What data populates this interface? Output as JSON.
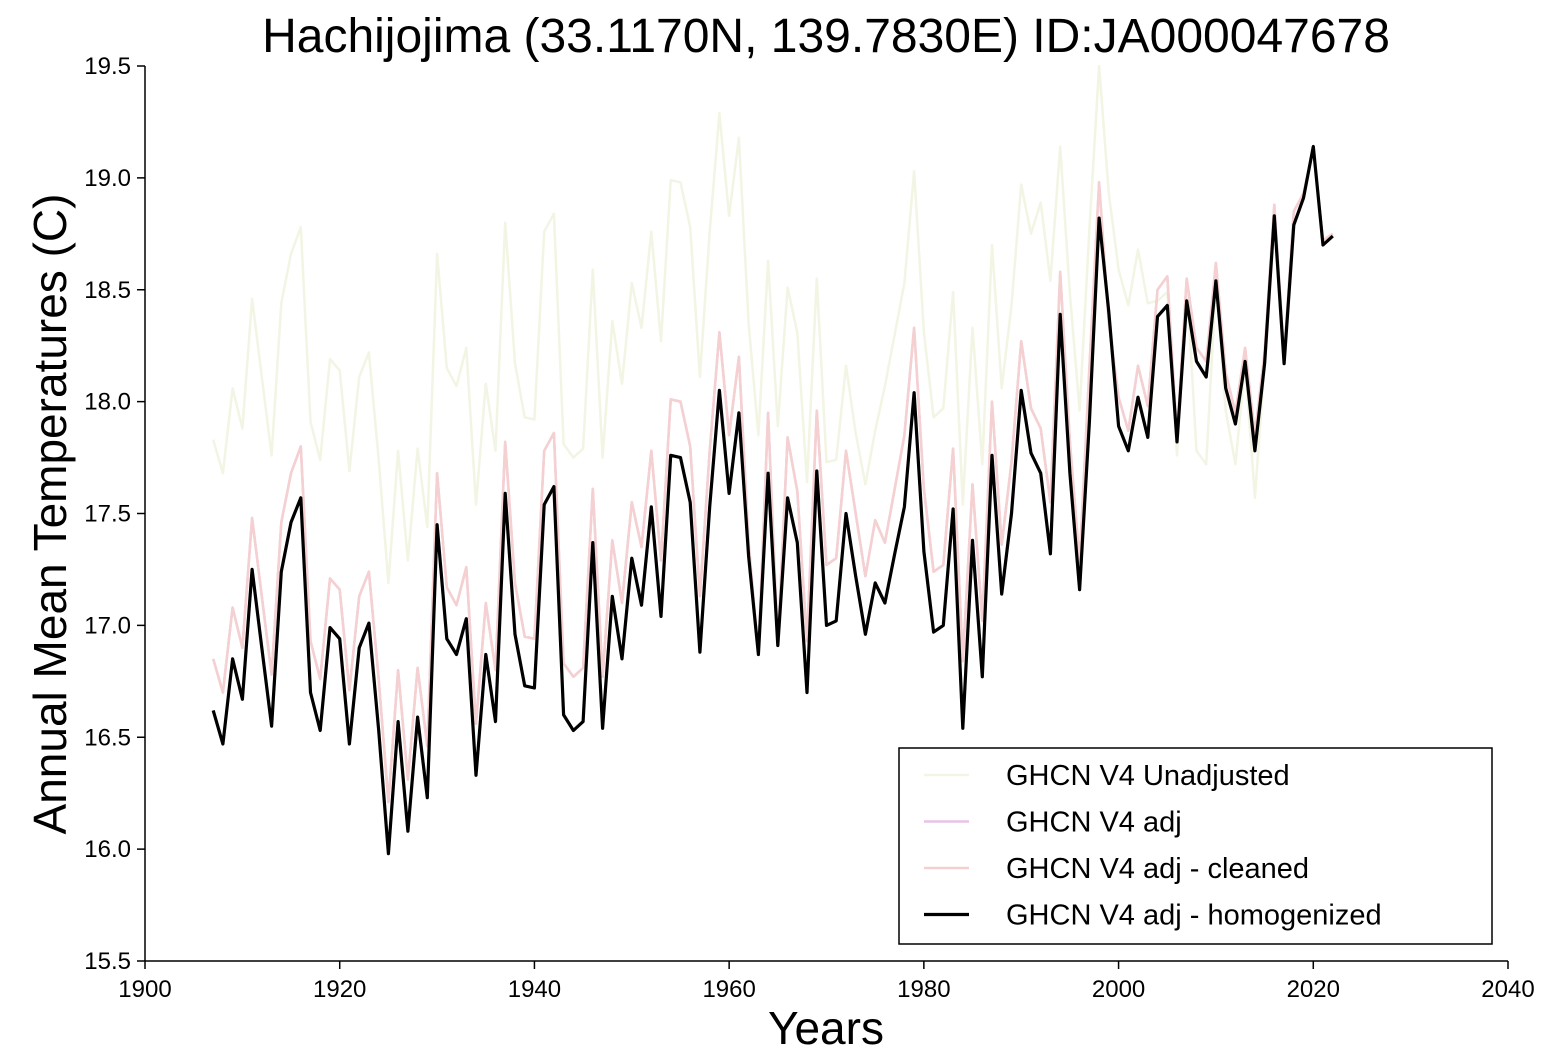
{
  "chart_data": {
    "type": "line",
    "title": "Hachijojima (33.1170N, 139.7830E) ID:JA000047678",
    "xlabel": "Years",
    "ylabel": "Annual Mean Temperatures (C)",
    "xlim": [
      1900,
      2040
    ],
    "ylim": [
      15.5,
      19.5
    ],
    "xticks": [
      "1900",
      "1920",
      "1940",
      "1960",
      "1980",
      "2000",
      "2020",
      "2040"
    ],
    "yticks": [
      "15.5",
      "16.0",
      "16.5",
      "17.0",
      "17.5",
      "18.0",
      "18.5",
      "19.0",
      "19.5"
    ],
    "grid": false,
    "legend_position": "lower-right",
    "x": [
      1907,
      1908,
      1909,
      1910,
      1911,
      1912,
      1913,
      1914,
      1915,
      1916,
      1917,
      1918,
      1919,
      1920,
      1921,
      1922,
      1923,
      1924,
      1925,
      1926,
      1927,
      1928,
      1929,
      1930,
      1931,
      1932,
      1933,
      1934,
      1935,
      1936,
      1937,
      1938,
      1939,
      1940,
      1941,
      1942,
      1943,
      1944,
      1945,
      1946,
      1947,
      1948,
      1949,
      1950,
      1951,
      1952,
      1953,
      1954,
      1955,
      1956,
      1957,
      1958,
      1959,
      1960,
      1961,
      1962,
      1963,
      1964,
      1965,
      1966,
      1967,
      1968,
      1969,
      1970,
      1971,
      1972,
      1973,
      1974,
      1975,
      1976,
      1977,
      1978,
      1979,
      1980,
      1981,
      1982,
      1983,
      1984,
      1985,
      1986,
      1987,
      1988,
      1989,
      1990,
      1991,
      1992,
      1993,
      1994,
      1995,
      1996,
      1997,
      1998,
      1999,
      2000,
      2001,
      2002,
      2003,
      2004,
      2005,
      2006,
      2007,
      2008,
      2009,
      2010,
      2011,
      2012,
      2013,
      2014,
      2015,
      2016,
      2017,
      2018,
      2019,
      2020,
      2021,
      2022
    ],
    "series": [
      {
        "name": "GHCN V4 Unadjusted",
        "color": "#f2f5e3",
        "width": 2.5,
        "values": [
          17.83,
          17.68,
          18.06,
          17.88,
          18.46,
          18.11,
          17.76,
          18.44,
          18.66,
          18.78,
          17.91,
          17.74,
          18.19,
          18.14,
          17.69,
          18.11,
          18.22,
          17.74,
          17.19,
          17.78,
          17.29,
          17.79,
          17.44,
          18.66,
          18.15,
          18.07,
          18.24,
          17.54,
          18.08,
          17.78,
          18.8,
          18.17,
          17.93,
          17.92,
          18.76,
          18.84,
          17.81,
          17.75,
          17.79,
          18.59,
          17.75,
          18.36,
          18.08,
          18.53,
          18.33,
          18.76,
          18.27,
          18.99,
          18.98,
          18.78,
          18.11,
          18.76,
          19.29,
          18.83,
          19.18,
          18.35,
          17.85,
          18.63,
          17.89,
          18.51,
          18.31,
          17.64,
          18.55,
          17.73,
          17.74,
          18.16,
          17.86,
          17.63,
          17.87,
          18.07,
          18.3,
          18.53,
          19.03,
          18.31,
          17.93,
          17.97,
          18.49,
          17.54,
          18.33,
          17.72,
          18.7,
          18.06,
          18.43,
          18.97,
          18.75,
          18.89,
          18.54,
          19.14,
          18.48,
          17.96,
          18.77,
          19.5,
          18.93,
          18.59,
          18.43,
          18.68,
          18.44,
          18.45,
          18.49,
          17.76,
          18.54,
          17.78,
          17.72,
          18.53,
          17.96,
          17.72,
          18.17,
          17.57,
          18.17,
          18.87,
          18.19,
          18.85,
          18.93,
          19.13,
          18.72,
          18.75
        ]
      },
      {
        "name": "GHCN V4 adj",
        "color": "#e6c4e6",
        "width": 2.5,
        "values": [
          16.85,
          16.7,
          17.08,
          16.9,
          17.48,
          17.13,
          16.78,
          17.46,
          17.68,
          17.8,
          16.93,
          16.76,
          17.21,
          17.16,
          16.71,
          17.13,
          17.24,
          16.76,
          16.21,
          16.8,
          16.31,
          16.81,
          16.46,
          17.68,
          17.17,
          17.09,
          17.26,
          16.56,
          17.1,
          16.8,
          17.82,
          17.19,
          16.95,
          16.94,
          17.78,
          17.86,
          16.83,
          16.77,
          16.81,
          17.61,
          16.77,
          17.38,
          17.1,
          17.55,
          17.35,
          17.78,
          17.29,
          18.01,
          18.0,
          17.8,
          17.13,
          17.78,
          18.31,
          17.85,
          18.2,
          17.37,
          16.87,
          17.95,
          16.91,
          17.84,
          17.6,
          16.93,
          17.96,
          17.27,
          17.3,
          17.78,
          17.5,
          17.22,
          17.47,
          17.37,
          17.61,
          17.85,
          18.33,
          17.61,
          17.24,
          17.27,
          17.79,
          16.84,
          17.63,
          17.02,
          18.0,
          17.36,
          17.73,
          18.27,
          17.97,
          17.88,
          17.55,
          18.58,
          17.82,
          17.28,
          18.15,
          18.98,
          18.35,
          18.02,
          17.87,
          18.16,
          17.98,
          18.5,
          18.56,
          17.84,
          18.55,
          18.24,
          18.18,
          18.62,
          18.13,
          17.95,
          18.24,
          17.85,
          18.22,
          18.88,
          18.2,
          18.85,
          18.93,
          19.13,
          18.72,
          18.75
        ]
      },
      {
        "name": "GHCN V4 adj - cleaned",
        "color": "#f5d0d0",
        "width": 2.5,
        "values": [
          16.85,
          16.7,
          17.08,
          16.9,
          17.48,
          17.13,
          16.78,
          17.46,
          17.68,
          17.8,
          16.93,
          16.76,
          17.21,
          17.16,
          16.71,
          17.13,
          17.24,
          16.76,
          16.21,
          16.8,
          16.31,
          16.81,
          16.46,
          17.68,
          17.17,
          17.09,
          17.26,
          16.56,
          17.1,
          16.8,
          17.82,
          17.19,
          16.95,
          16.94,
          17.78,
          17.86,
          16.83,
          16.77,
          16.81,
          17.61,
          16.77,
          17.38,
          17.1,
          17.55,
          17.35,
          17.78,
          17.29,
          18.01,
          18.0,
          17.8,
          17.13,
          17.78,
          18.31,
          17.85,
          18.2,
          17.37,
          16.87,
          17.95,
          16.91,
          17.84,
          17.6,
          16.93,
          17.96,
          17.27,
          17.3,
          17.78,
          17.5,
          17.22,
          17.47,
          17.37,
          17.61,
          17.85,
          18.33,
          17.61,
          17.24,
          17.27,
          17.79,
          16.84,
          17.63,
          17.02,
          18.0,
          17.36,
          17.73,
          18.27,
          17.97,
          17.88,
          17.55,
          18.58,
          17.82,
          17.28,
          18.15,
          18.98,
          18.35,
          18.02,
          17.87,
          18.16,
          17.98,
          18.5,
          18.56,
          17.84,
          18.55,
          18.24,
          18.18,
          18.62,
          18.13,
          17.95,
          18.24,
          17.85,
          18.22,
          18.88,
          18.2,
          18.85,
          18.93,
          19.13,
          18.72,
          18.75
        ]
      },
      {
        "name": "GHCN V4 adj - homogenized",
        "color": "#000000",
        "width": 3.2,
        "values": [
          16.62,
          16.47,
          16.85,
          16.67,
          17.25,
          16.9,
          16.55,
          17.24,
          17.46,
          17.57,
          16.7,
          16.53,
          16.99,
          16.94,
          16.47,
          16.9,
          17.01,
          16.53,
          15.98,
          16.57,
          16.08,
          16.59,
          16.23,
          17.45,
          16.94,
          16.87,
          17.03,
          16.33,
          16.87,
          16.57,
          17.59,
          16.96,
          16.73,
          16.72,
          17.54,
          17.62,
          16.6,
          16.53,
          16.57,
          17.37,
          16.54,
          17.13,
          16.85,
          17.3,
          17.09,
          17.53,
          17.04,
          17.76,
          17.75,
          17.55,
          16.88,
          17.53,
          18.05,
          17.59,
          17.95,
          17.31,
          16.87,
          17.68,
          16.91,
          17.57,
          17.37,
          16.7,
          17.69,
          17.0,
          17.02,
          17.5,
          17.22,
          16.96,
          17.19,
          17.1,
          17.32,
          17.53,
          18.04,
          17.33,
          16.97,
          17.0,
          17.52,
          16.54,
          17.38,
          16.77,
          17.76,
          17.14,
          17.5,
          18.05,
          17.77,
          17.68,
          17.32,
          18.39,
          17.68,
          17.16,
          17.91,
          18.82,
          18.4,
          17.89,
          17.78,
          18.02,
          17.84,
          18.38,
          18.43,
          17.82,
          18.45,
          18.18,
          18.11,
          18.54,
          18.06,
          17.9,
          18.18,
          17.78,
          18.17,
          18.83,
          18.17,
          18.79,
          18.91,
          19.14,
          18.7,
          18.74
        ]
      }
    ]
  }
}
